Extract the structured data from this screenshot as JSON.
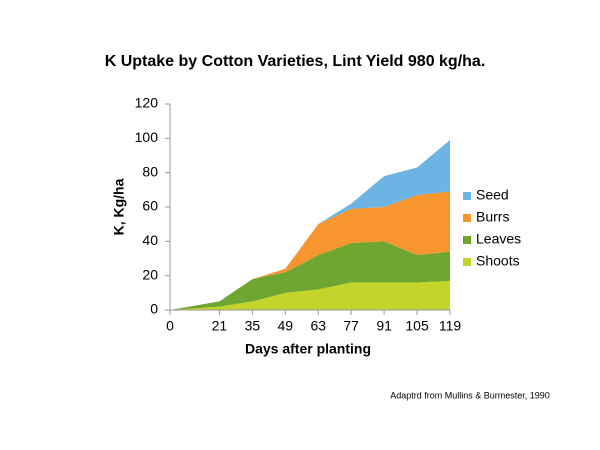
{
  "chart_data": {
    "type": "stacked_area",
    "title": "K Uptake by Cotton Varieties, Lint Yield 980 kg/ha.",
    "x_label": "Days after planting",
    "y_label": "K, Kg/ha",
    "source": "Adaptrd from Mullins & Burmester, 1990",
    "x": [
      0,
      21,
      35,
      49,
      63,
      77,
      91,
      105,
      119
    ],
    "xlim": [
      0,
      119
    ],
    "xticks": [
      0,
      21,
      35,
      49,
      63,
      77,
      91,
      105,
      119
    ],
    "ylim": [
      0,
      120
    ],
    "yticks": [
      0,
      20,
      40,
      60,
      80,
      100,
      120
    ],
    "grid": false,
    "legend": "right",
    "series": [
      {
        "name": "Shoots",
        "color": "#c3d42a",
        "values": [
          0,
          2,
          5,
          10,
          12,
          16,
          16,
          16,
          17
        ]
      },
      {
        "name": "Leaves",
        "color": "#6fa632",
        "values": [
          0,
          3,
          13,
          12,
          20,
          23,
          24,
          16,
          17
        ]
      },
      {
        "name": "Burrs",
        "color": "#f7962e",
        "values": [
          0,
          0,
          0,
          2,
          18,
          20,
          20,
          35,
          35
        ]
      },
      {
        "name": "Seed",
        "color": "#6cb4e4",
        "values": [
          0,
          0,
          0,
          0,
          0,
          3,
          18,
          16,
          30
        ]
      }
    ]
  }
}
